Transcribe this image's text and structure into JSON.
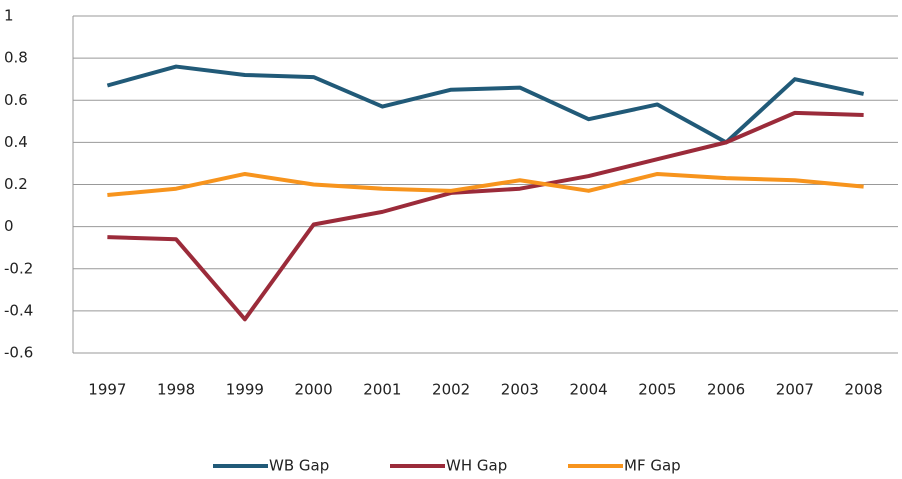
{
  "chart_data": {
    "type": "line",
    "categories": [
      "1997",
      "1998",
      "1999",
      "2000",
      "2001",
      "2002",
      "2003",
      "2004",
      "2005",
      "2006",
      "2007",
      "2008"
    ],
    "series": [
      {
        "name": "WB Gap",
        "color": "#215a78",
        "values": [
          0.67,
          0.76,
          0.72,
          0.71,
          0.57,
          0.65,
          0.66,
          0.51,
          0.58,
          0.4,
          0.7,
          0.63
        ]
      },
      {
        "name": "WH Gap",
        "color": "#9b2b3a",
        "values": [
          -0.05,
          -0.06,
          -0.44,
          0.01,
          0.07,
          0.16,
          0.18,
          0.24,
          0.32,
          0.4,
          0.54,
          0.53
        ]
      },
      {
        "name": "MF Gap",
        "color": "#f7941d",
        "values": [
          0.15,
          0.18,
          0.25,
          0.2,
          0.18,
          0.17,
          0.22,
          0.17,
          0.25,
          0.23,
          0.22,
          0.19
        ]
      }
    ],
    "ylim": [
      -0.6,
      1
    ],
    "yticks": [
      -0.6,
      -0.4,
      -0.2,
      0,
      0.2,
      0.4,
      0.6,
      0.8,
      1
    ],
    "grid": true,
    "legend": "bottom"
  }
}
